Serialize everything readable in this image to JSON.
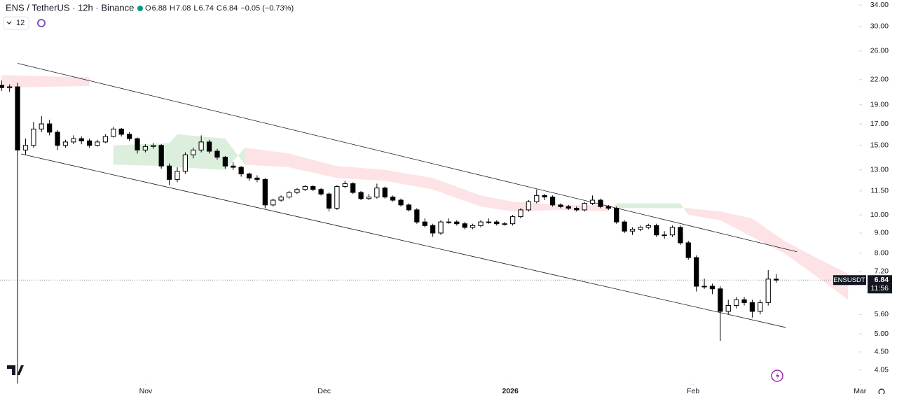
{
  "header": {
    "symbol": "ENS / TetherUS · 12h · Binance",
    "ohlc": [
      {
        "label": "O",
        "value": "6.88"
      },
      {
        "label": "H",
        "value": "7.08"
      },
      {
        "label": "L",
        "value": "6.74"
      },
      {
        "label": "C",
        "value": "6.84"
      }
    ],
    "change": "−0.05 (−0.73%)",
    "indicator_count": "12"
  },
  "chart_data": {
    "type": "candlestick",
    "log_scale": true,
    "up_color": "#ffffff",
    "down_color": "#000000",
    "outline_color": "#000000",
    "ohlc": [
      [
        21.3,
        21.9,
        20.6,
        21.0
      ],
      [
        21.0,
        21.4,
        20.5,
        21.1
      ],
      [
        21.1,
        21.6,
        3.7,
        14.6
      ],
      [
        14.6,
        15.6,
        14.2,
        15.0
      ],
      [
        15.0,
        17.2,
        14.8,
        16.5
      ],
      [
        16.5,
        17.8,
        16.2,
        17.0
      ],
      [
        17.0,
        17.4,
        15.9,
        16.2
      ],
      [
        16.2,
        16.4,
        14.6,
        15.0
      ],
      [
        15.0,
        15.5,
        14.8,
        15.3
      ],
      [
        15.3,
        15.9,
        15.1,
        15.6
      ],
      [
        15.6,
        15.8,
        15.1,
        15.4
      ],
      [
        15.4,
        15.6,
        14.8,
        15.0
      ],
      [
        15.0,
        15.5,
        14.9,
        15.3
      ],
      [
        15.3,
        16.0,
        15.2,
        15.8
      ],
      [
        15.8,
        16.7,
        15.7,
        16.5
      ],
      [
        16.5,
        16.6,
        15.8,
        16.0
      ],
      [
        16.0,
        16.2,
        15.4,
        15.6
      ],
      [
        15.6,
        15.7,
        14.3,
        14.6
      ],
      [
        14.6,
        15.1,
        14.4,
        14.9
      ],
      [
        14.9,
        15.2,
        14.7,
        15.0
      ],
      [
        15.0,
        15.1,
        13.1,
        13.3
      ],
      [
        13.3,
        13.5,
        11.9,
        12.3
      ],
      [
        12.3,
        13.2,
        12.1,
        12.9
      ],
      [
        12.9,
        14.4,
        12.7,
        14.2
      ],
      [
        14.2,
        14.8,
        13.9,
        14.6
      ],
      [
        14.6,
        15.9,
        14.4,
        15.3
      ],
      [
        15.3,
        15.5,
        14.3,
        14.5
      ],
      [
        14.5,
        14.7,
        13.8,
        14.0
      ],
      [
        14.0,
        14.1,
        13.1,
        13.3
      ],
      [
        13.3,
        13.6,
        13.0,
        13.2
      ],
      [
        13.2,
        13.3,
        12.5,
        12.7
      ],
      [
        12.7,
        12.8,
        12.2,
        12.4
      ],
      [
        12.4,
        12.6,
        12.1,
        12.3
      ],
      [
        12.3,
        12.4,
        10.4,
        10.6
      ],
      [
        10.6,
        11.0,
        10.5,
        10.9
      ],
      [
        10.9,
        11.2,
        10.8,
        11.1
      ],
      [
        11.1,
        11.5,
        11.0,
        11.4
      ],
      [
        11.4,
        11.7,
        11.3,
        11.6
      ],
      [
        11.6,
        11.9,
        11.5,
        11.8
      ],
      [
        11.8,
        11.9,
        11.5,
        11.6
      ],
      [
        11.6,
        11.7,
        11.2,
        11.3
      ],
      [
        11.3,
        11.4,
        10.2,
        10.4
      ],
      [
        10.4,
        11.9,
        10.3,
        11.8
      ],
      [
        11.8,
        12.2,
        11.7,
        12.0
      ],
      [
        12.0,
        12.1,
        11.3,
        11.4
      ],
      [
        11.4,
        11.5,
        10.9,
        11.0
      ],
      [
        11.0,
        11.3,
        10.9,
        11.1
      ],
      [
        11.1,
        12.0,
        11.0,
        11.7
      ],
      [
        11.7,
        11.8,
        11.0,
        11.1
      ],
      [
        11.1,
        11.2,
        10.8,
        10.9
      ],
      [
        10.9,
        11.0,
        10.5,
        10.6
      ],
      [
        10.6,
        10.7,
        10.2,
        10.3
      ],
      [
        10.3,
        10.4,
        9.5,
        9.6
      ],
      [
        9.6,
        9.8,
        9.3,
        9.4
      ],
      [
        9.4,
        9.5,
        8.8,
        9.0
      ],
      [
        9.0,
        9.7,
        8.9,
        9.6
      ],
      [
        9.6,
        9.8,
        9.5,
        9.6
      ],
      [
        9.6,
        9.7,
        9.4,
        9.5
      ],
      [
        9.5,
        9.6,
        9.2,
        9.3
      ],
      [
        9.3,
        9.5,
        9.2,
        9.4
      ],
      [
        9.4,
        9.7,
        9.3,
        9.6
      ],
      [
        9.6,
        9.8,
        9.5,
        9.6
      ],
      [
        9.6,
        9.7,
        9.4,
        9.5
      ],
      [
        9.5,
        9.6,
        9.4,
        9.5
      ],
      [
        9.5,
        10.0,
        9.4,
        9.9
      ],
      [
        9.9,
        10.4,
        9.8,
        10.3
      ],
      [
        10.3,
        10.9,
        10.2,
        10.8
      ],
      [
        10.8,
        11.6,
        10.7,
        11.2
      ],
      [
        11.2,
        11.3,
        10.9,
        11.1
      ],
      [
        11.1,
        11.2,
        10.5,
        10.6
      ],
      [
        10.6,
        10.7,
        10.4,
        10.5
      ],
      [
        10.5,
        10.6,
        10.3,
        10.4
      ],
      [
        10.4,
        10.5,
        10.2,
        10.3
      ],
      [
        10.3,
        10.8,
        10.2,
        10.7
      ],
      [
        10.7,
        11.2,
        10.6,
        10.9
      ],
      [
        10.9,
        11.0,
        10.4,
        10.5
      ],
      [
        10.5,
        10.6,
        10.3,
        10.4
      ],
      [
        10.4,
        10.5,
        9.5,
        9.6
      ],
      [
        9.6,
        9.7,
        9.0,
        9.1
      ],
      [
        9.1,
        9.3,
        8.9,
        9.2
      ],
      [
        9.2,
        9.4,
        9.1,
        9.3
      ],
      [
        9.3,
        9.5,
        9.2,
        9.4
      ],
      [
        9.4,
        9.5,
        8.8,
        8.9
      ],
      [
        8.9,
        9.1,
        8.7,
        8.9
      ],
      [
        8.9,
        9.4,
        8.8,
        9.3
      ],
      [
        9.3,
        9.4,
        8.4,
        8.5
      ],
      [
        8.5,
        8.6,
        7.7,
        7.8
      ],
      [
        7.8,
        7.9,
        6.4,
        6.6
      ],
      [
        6.6,
        6.9,
        6.5,
        6.6
      ],
      [
        6.6,
        6.7,
        6.3,
        6.5
      ],
      [
        6.5,
        6.6,
        4.8,
        5.7
      ],
      [
        5.7,
        6.1,
        5.6,
        5.9
      ],
      [
        5.9,
        6.2,
        5.8,
        6.1
      ],
      [
        6.1,
        6.2,
        5.9,
        6.0
      ],
      [
        6.0,
        6.1,
        5.5,
        5.7
      ],
      [
        5.7,
        6.1,
        5.6,
        6.0
      ],
      [
        6.0,
        7.25,
        5.9,
        6.88
      ],
      [
        6.88,
        7.08,
        6.74,
        6.84
      ]
    ],
    "xlim": [
      -0.2,
      107.3
    ],
    "xticks": [
      {
        "value": 18.05,
        "label": "Nov"
      },
      {
        "value": 40.4,
        "label": "Dec"
      },
      {
        "value": 63.7,
        "label": "2026"
      },
      {
        "value": 86.6,
        "label": "Feb"
      },
      {
        "value": 107.5,
        "label": "Mar"
      }
    ],
    "ylim": [
      3.79,
      35.0
    ],
    "yticks": [
      {
        "value": 34,
        "label": "34.00"
      },
      {
        "value": 30,
        "label": "30.00"
      },
      {
        "value": 26,
        "label": "26.00"
      },
      {
        "value": 22,
        "label": "22.00"
      },
      {
        "value": 19,
        "label": "19.00"
      },
      {
        "value": 17,
        "label": "17.00"
      },
      {
        "value": 15,
        "label": "15.00"
      },
      {
        "value": 13,
        "label": "13.00"
      },
      {
        "value": 11.5,
        "label": "11.50"
      },
      {
        "value": 10,
        "label": "10.00"
      },
      {
        "value": 9,
        "label": "9.00"
      },
      {
        "value": 8,
        "label": "8.00"
      },
      {
        "value": 7.2,
        "label": "7.20"
      },
      {
        "value": 5.6,
        "label": "5.60"
      },
      {
        "value": 5,
        "label": "5.00"
      },
      {
        "value": 4.5,
        "label": "4.50"
      },
      {
        "value": 4.05,
        "label": "4.05"
      }
    ],
    "cloud": {
      "up_color": "rgba(76,175,80,0.2)",
      "down_color": "rgba(242,54,69,0.14)",
      "x": [
        0,
        11,
        12,
        14,
        21,
        22,
        28,
        30.5,
        36,
        42,
        48,
        54,
        60,
        64,
        70,
        76,
        77,
        85,
        86,
        90,
        94,
        98,
        102,
        106
      ],
      "span_a": [
        21.0,
        21.2,
        null,
        15.0,
        15.2,
        16.0,
        15.6,
        13.4,
        13.2,
        12.4,
        12.2,
        11.6,
        10.5,
        10.2,
        10.3,
        10.2,
        10.7,
        10.7,
        10.0,
        9.7,
        8.8,
        8.0,
        7.0,
        6.1
      ],
      "span_b": [
        22.6,
        22.3,
        null,
        13.4,
        13.3,
        13.2,
        13.0,
        14.8,
        14.3,
        13.3,
        13.0,
        12.4,
        11.2,
        10.8,
        10.6,
        10.6,
        10.4,
        10.4,
        10.4,
        10.2,
        9.8,
        8.6,
        7.8,
        7.1
      ]
    },
    "trend_lines": [
      {
        "x": [
          2,
          99.6
        ],
        "values": [
          24.2,
          8.07
        ]
      },
      {
        "x": [
          2.44,
          98.2
        ],
        "values": [
          14.27,
          5.19
        ]
      }
    ],
    "price_line": 6.84,
    "price_tag": {
      "symbol": "ENSUSDT",
      "countdown": "11:56"
    }
  }
}
